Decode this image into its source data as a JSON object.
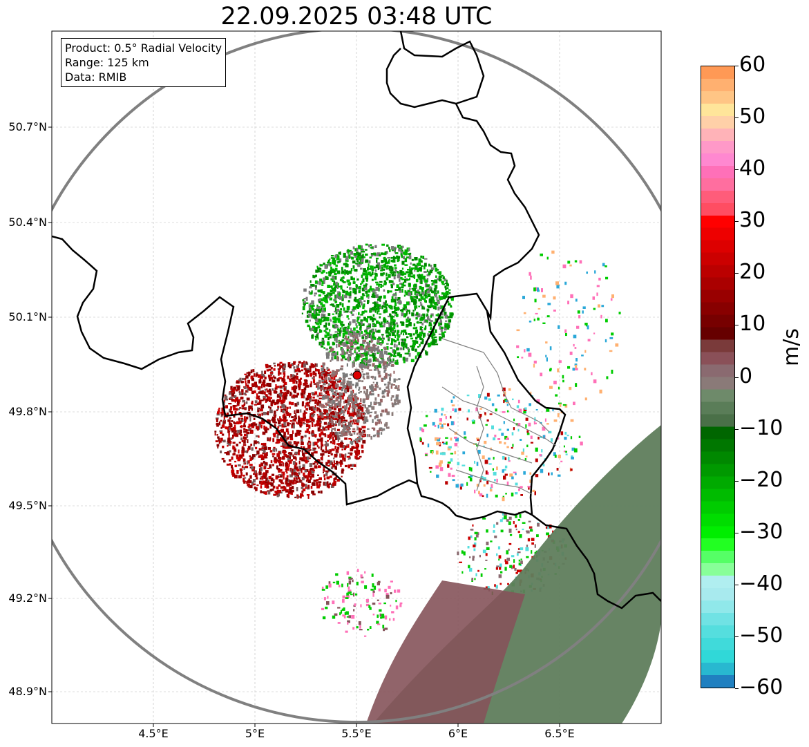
{
  "title": "22.09.2025 03:48 UTC",
  "info_box": {
    "product": "Product: 0.5° Radial Velocity",
    "range": "Range: 125 km",
    "data": "Data: RMIB"
  },
  "lat_labels": [
    "50.7°N",
    "50.4°N",
    "50.1°N",
    "49.8°N",
    "49.5°N",
    "49.2°N",
    "48.9°N"
  ],
  "lon_labels": [
    "4.5°E",
    "5°E",
    "5.5°E",
    "6°E",
    "6.5°E"
  ],
  "colorbar": {
    "label": "m/s",
    "ticks": [
      "60",
      "50",
      "40",
      "30",
      "20",
      "10",
      "0",
      "−10",
      "−20",
      "−30",
      "−40",
      "−50",
      "−60"
    ],
    "colors": [
      "#ff9955",
      "#ffb070",
      "#ffc585",
      "#ffe59a",
      "#ffd0a8",
      "#ffb3b8",
      "#ff99c8",
      "#ff88d0",
      "#ff70b8",
      "#ff6e9f",
      "#ff5c7a",
      "#ff4d62",
      "#ff0000",
      "#ee0000",
      "#dd0000",
      "#cc0000",
      "#bb0000",
      "#aa0000",
      "#990000",
      "#880000",
      "#770000",
      "#660000",
      "#7a3a3a",
      "#8a5058",
      "#8a6a70",
      "#8a7a78",
      "#6e8a6a",
      "#5a7d58",
      "#4a7048",
      "#006600",
      "#007700",
      "#008800",
      "#009900",
      "#00aa00",
      "#00bb00",
      "#00cc00",
      "#00dd00",
      "#00ee00",
      "#22ff22",
      "#55ff66",
      "#88ff99",
      "#b0eef0",
      "#a8eaee",
      "#90e8ea",
      "#70e2e4",
      "#55dede",
      "#40dada",
      "#30d8d8",
      "#28b8d0",
      "#2080c0"
    ]
  },
  "radar_site_color": "#dd0000"
}
